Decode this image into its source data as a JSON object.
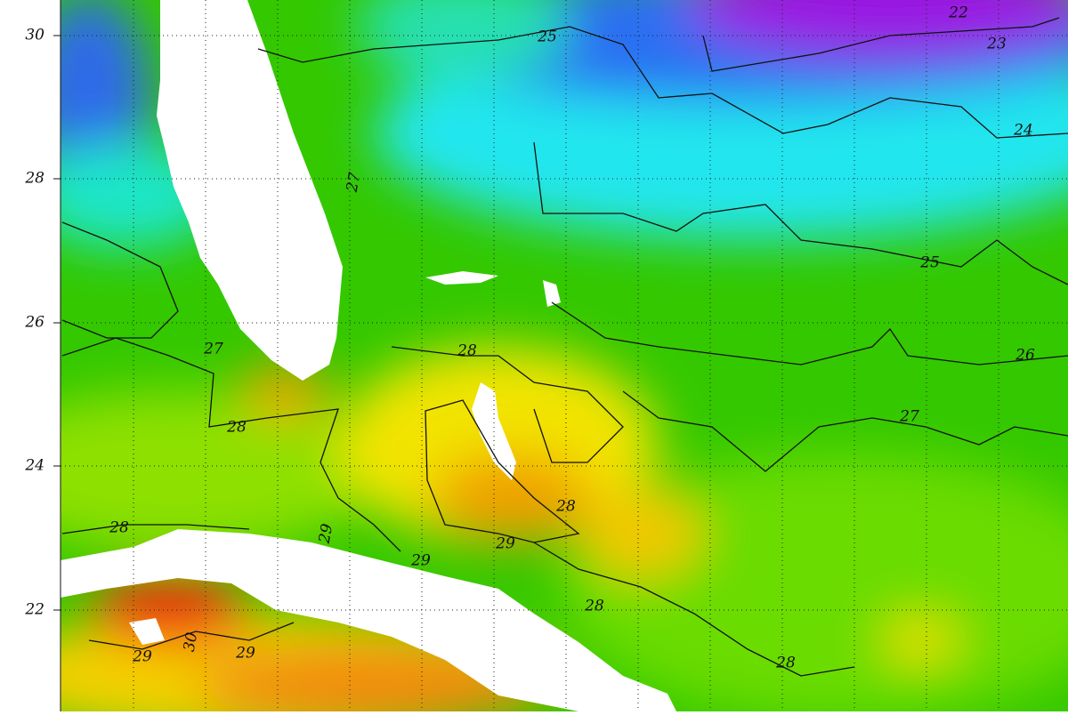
{
  "map": {
    "latitude_labels": [
      30,
      28,
      26,
      24,
      22
    ],
    "contour_labels": [
      25,
      22,
      23,
      24,
      25,
      26,
      27,
      27,
      27,
      28,
      28,
      28,
      28,
      29,
      29,
      29,
      28,
      28,
      29,
      30,
      29
    ]
  }
}
